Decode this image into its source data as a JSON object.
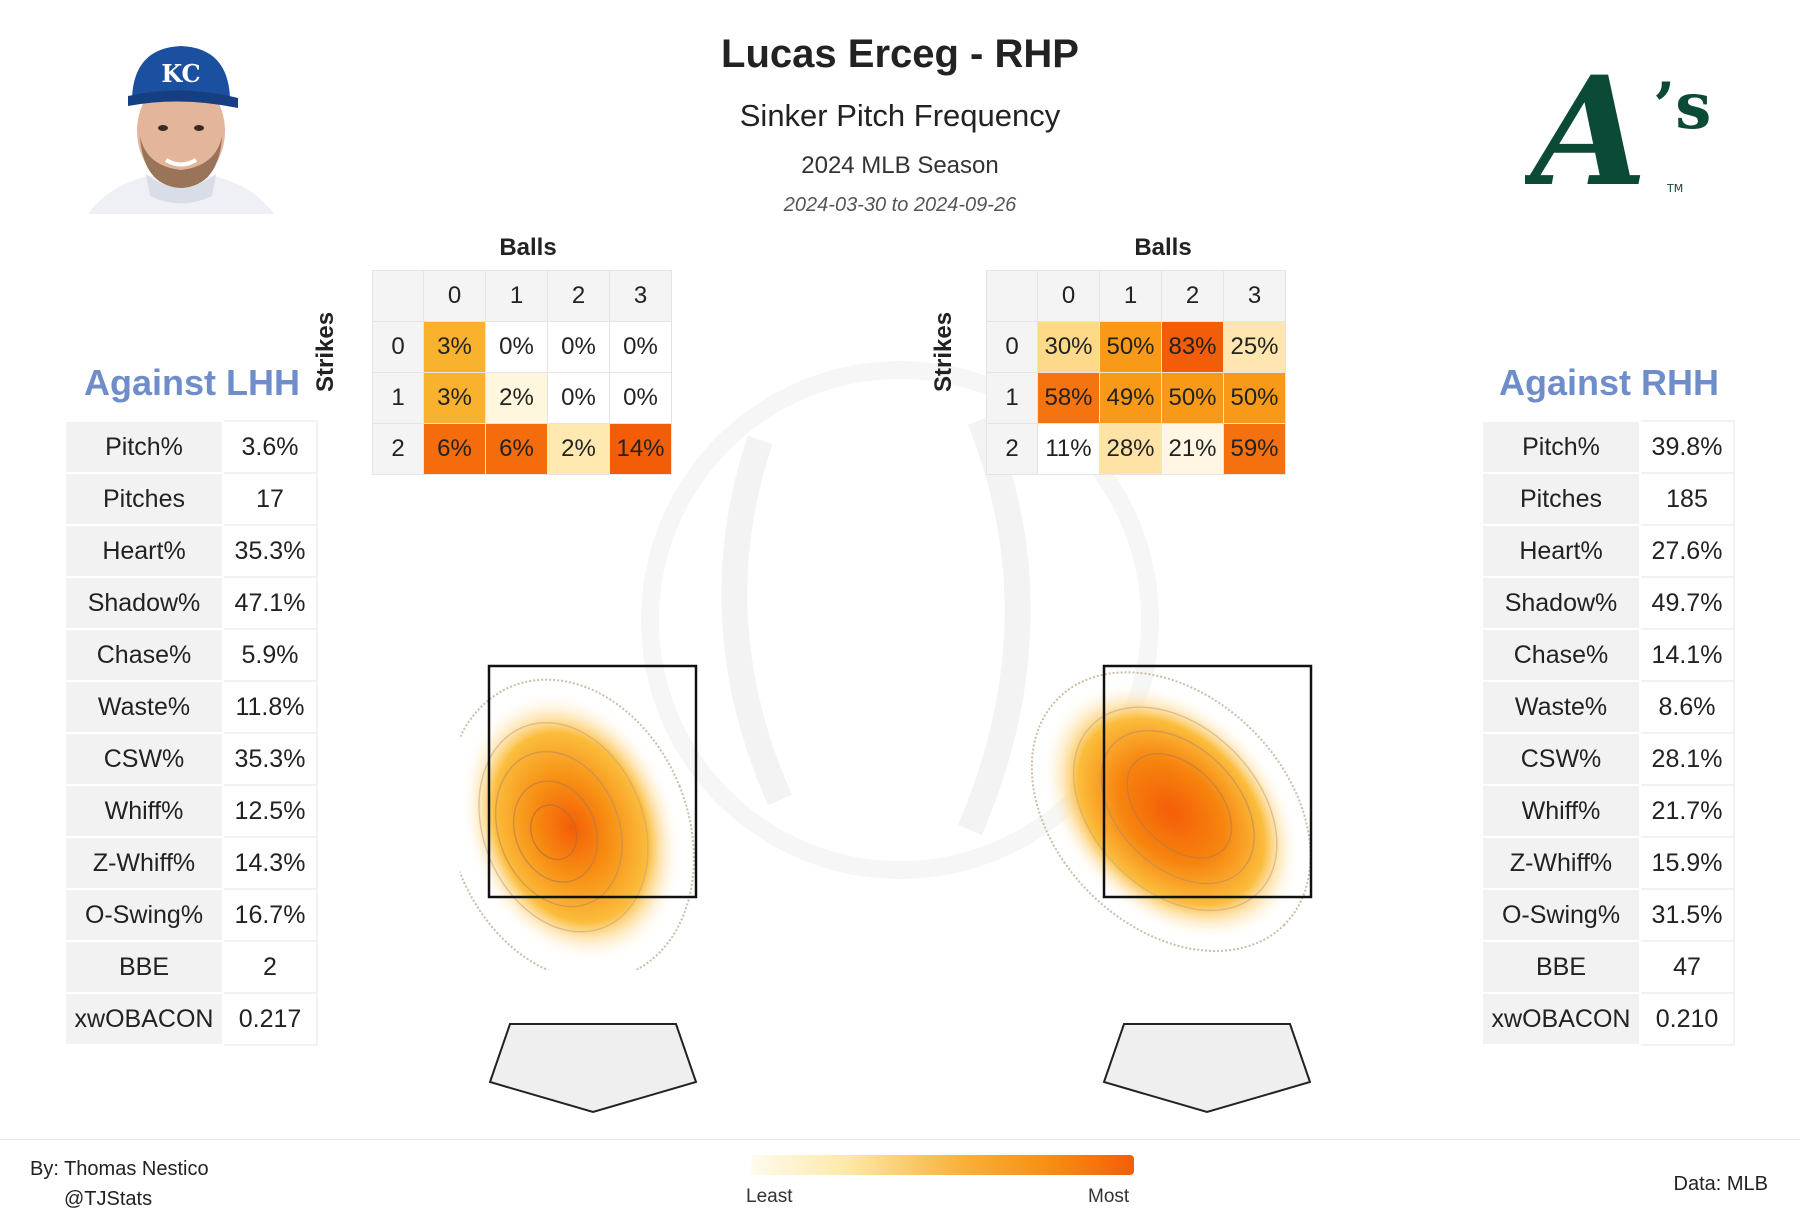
{
  "header": {
    "title": "Lucas Erceg - RHP",
    "subtitle": "Sinker Pitch Frequency",
    "season": "2024 MLB Season",
    "date_range": "2024-03-30 to 2024-09-26"
  },
  "colors": {
    "side_title": "#6f8ec9",
    "team_green": "#0b4a36",
    "team_gold": "#efb21e",
    "royals_blue": "#1b4fa0",
    "heat_low": "#fffbee",
    "heat_high": "#f45d08"
  },
  "logo": {
    "text": "A's",
    "tm": "TM"
  },
  "left": {
    "title": "Against LHH",
    "stats": [
      {
        "label": "Pitch%",
        "value": "3.6%"
      },
      {
        "label": "Pitches",
        "value": "17"
      },
      {
        "label": "Heart%",
        "value": "35.3%"
      },
      {
        "label": "Shadow%",
        "value": "47.1%"
      },
      {
        "label": "Chase%",
        "value": "5.9%"
      },
      {
        "label": "Waste%",
        "value": "11.8%"
      },
      {
        "label": "CSW%",
        "value": "35.3%"
      },
      {
        "label": "Whiff%",
        "value": "12.5%"
      },
      {
        "label": "Z-Whiff%",
        "value": "14.3%"
      },
      {
        "label": "O-Swing%",
        "value": "16.7%"
      },
      {
        "label": "BBE",
        "value": "2"
      },
      {
        "label": "xwOBACON",
        "value": "0.217"
      }
    ],
    "count_table": {
      "col_label": "Balls",
      "row_label": "Strikes",
      "cols": [
        "0",
        "1",
        "2",
        "3"
      ],
      "rows": [
        "0",
        "1",
        "2"
      ],
      "cells": [
        [
          {
            "t": "3%",
            "c": "#f9b22d"
          },
          {
            "t": "0%",
            "c": "#ffffff"
          },
          {
            "t": "0%",
            "c": "#ffffff"
          },
          {
            "t": "0%",
            "c": "#ffffff"
          }
        ],
        [
          {
            "t": "3%",
            "c": "#f9b22d"
          },
          {
            "t": "2%",
            "c": "#fff6de"
          },
          {
            "t": "0%",
            "c": "#ffffff"
          },
          {
            "t": "0%",
            "c": "#ffffff"
          }
        ],
        [
          {
            "t": "6%",
            "c": "#f46c0c"
          },
          {
            "t": "6%",
            "c": "#f46c0c"
          },
          {
            "t": "2%",
            "c": "#ffe9b0"
          },
          {
            "t": "14%",
            "c": "#f45d08"
          }
        ]
      ]
    }
  },
  "right": {
    "title": "Against RHH",
    "stats": [
      {
        "label": "Pitch%",
        "value": "39.8%"
      },
      {
        "label": "Pitches",
        "value": "185"
      },
      {
        "label": "Heart%",
        "value": "27.6%"
      },
      {
        "label": "Shadow%",
        "value": "49.7%"
      },
      {
        "label": "Chase%",
        "value": "14.1%"
      },
      {
        "label": "Waste%",
        "value": "8.6%"
      },
      {
        "label": "CSW%",
        "value": "28.1%"
      },
      {
        "label": "Whiff%",
        "value": "21.7%"
      },
      {
        "label": "Z-Whiff%",
        "value": "15.9%"
      },
      {
        "label": "O-Swing%",
        "value": "31.5%"
      },
      {
        "label": "BBE",
        "value": "47"
      },
      {
        "label": "xwOBACON",
        "value": "0.210"
      }
    ],
    "count_table": {
      "col_label": "Balls",
      "row_label": "Strikes",
      "cols": [
        "0",
        "1",
        "2",
        "3"
      ],
      "rows": [
        "0",
        "1",
        "2"
      ],
      "cells": [
        [
          {
            "t": "30%",
            "c": "#fed98a"
          },
          {
            "t": "50%",
            "c": "#f89a18"
          },
          {
            "t": "83%",
            "c": "#f45d08"
          },
          {
            "t": "25%",
            "c": "#ffe6b0"
          }
        ],
        [
          {
            "t": "58%",
            "c": "#f57410"
          },
          {
            "t": "49%",
            "c": "#f89a18"
          },
          {
            "t": "50%",
            "c": "#f89a18"
          },
          {
            "t": "50%",
            "c": "#f89a18"
          }
        ],
        [
          {
            "t": "11%",
            "c": "#ffffff"
          },
          {
            "t": "28%",
            "c": "#ffe3a6"
          },
          {
            "t": "21%",
            "c": "#fff6e4"
          },
          {
            "t": "59%",
            "c": "#f5700e"
          }
        ]
      ]
    }
  },
  "chart_data": [
    {
      "type": "heatmap",
      "title": "Against LHH",
      "description": "Sinker location density vs LHH",
      "hotspot": "low-middle of strike zone",
      "legend": {
        "low": "Least",
        "high": "Most"
      }
    },
    {
      "type": "heatmap",
      "title": "Against RHH",
      "description": "Sinker location density vs RHH",
      "hotspot": "middle of strike zone",
      "legend": {
        "low": "Least",
        "high": "Most"
      }
    }
  ],
  "legend": {
    "least": "Least",
    "most": "Most"
  },
  "footer": {
    "credit_name": "By: Thomas Nestico",
    "credit_handle": "@TJStats",
    "data_source": "Data: MLB"
  }
}
